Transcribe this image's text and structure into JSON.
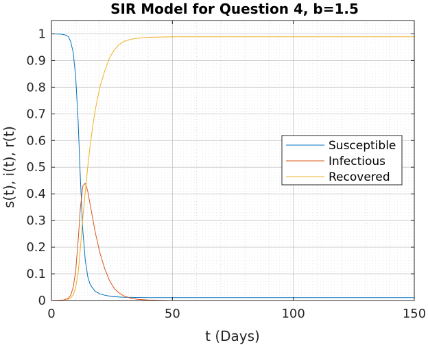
{
  "chart_data": {
    "type": "line",
    "title": "SIR Model for Question 4, b=1.5",
    "xlabel": "t (Days)",
    "ylabel": "s(t), i(t), r(t)",
    "xlim": [
      0,
      150
    ],
    "ylim": [
      0,
      1.05
    ],
    "xticks": [
      0,
      50,
      100,
      150
    ],
    "yticks": [
      0,
      0.1,
      0.2,
      0.3,
      0.4,
      0.5,
      0.6,
      0.7,
      0.8,
      0.9,
      1
    ],
    "xtick_labels": [
      "0",
      "50",
      "100",
      "150"
    ],
    "ytick_labels": [
      "0",
      "0.1",
      "0.2",
      "0.3",
      "0.4",
      "0.5",
      "0.6",
      "0.7",
      "0.8",
      "0.9",
      "1"
    ],
    "grid": true,
    "minor_grid": true,
    "legend_position": "right",
    "series": [
      {
        "name": "Susceptible",
        "color": "#0072bd",
        "x": [
          0,
          4,
          6,
          7,
          8,
          9,
          10,
          11,
          12,
          13,
          14,
          15,
          16,
          18,
          20,
          22,
          25,
          30,
          40,
          60,
          100,
          150
        ],
        "y": [
          1.0,
          0.999,
          0.995,
          0.99,
          0.97,
          0.93,
          0.84,
          0.68,
          0.45,
          0.26,
          0.15,
          0.09,
          0.06,
          0.035,
          0.025,
          0.02,
          0.015,
          0.012,
          0.011,
          0.011,
          0.011,
          0.011
        ]
      },
      {
        "name": "Infectious",
        "color": "#d95319",
        "x": [
          0,
          5,
          7,
          8,
          9,
          10,
          11,
          12,
          13,
          14,
          15,
          16,
          17,
          18,
          20,
          22,
          24,
          26,
          28,
          30,
          33,
          36,
          40,
          50,
          150
        ],
        "y": [
          0.0,
          0.002,
          0.008,
          0.02,
          0.05,
          0.11,
          0.22,
          0.35,
          0.43,
          0.44,
          0.41,
          0.36,
          0.31,
          0.26,
          0.18,
          0.12,
          0.075,
          0.045,
          0.028,
          0.017,
          0.008,
          0.004,
          0.002,
          0.0,
          0.0
        ]
      },
      {
        "name": "Recovered",
        "color": "#edb120",
        "x": [
          0,
          6,
          8,
          9,
          10,
          11,
          12,
          13,
          14,
          15,
          16,
          17,
          18,
          20,
          22,
          24,
          26,
          28,
          30,
          33,
          36,
          40,
          50,
          150
        ],
        "y": [
          0.0,
          0.0,
          0.01,
          0.02,
          0.05,
          0.1,
          0.2,
          0.31,
          0.41,
          0.5,
          0.58,
          0.65,
          0.71,
          0.8,
          0.86,
          0.91,
          0.94,
          0.96,
          0.972,
          0.98,
          0.984,
          0.987,
          0.989,
          0.989
        ]
      }
    ]
  }
}
